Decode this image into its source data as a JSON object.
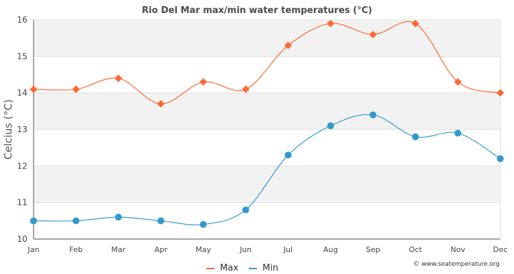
{
  "chart_data": {
    "type": "line",
    "title": "Rio Del Mar max/min water temperatures (°C)",
    "xlabel": "",
    "ylabel": "Celcius (°C)",
    "categories": [
      "Jan",
      "Feb",
      "Mar",
      "Apr",
      "May",
      "Jun",
      "Jul",
      "Aug",
      "Sep",
      "Oct",
      "Nov",
      "Dec"
    ],
    "ylim": [
      10,
      16
    ],
    "yticks": [
      10,
      11,
      12,
      13,
      14,
      15,
      16
    ],
    "grid": true,
    "legend_position": "bottom-center",
    "series": [
      {
        "name": "Max",
        "color": "#ff6633",
        "marker": "diamond",
        "values": [
          14.1,
          14.1,
          14.4,
          13.7,
          14.3,
          14.1,
          15.3,
          15.9,
          15.6,
          15.9,
          14.3,
          14.0
        ]
      },
      {
        "name": "Min",
        "color": "#3399cc",
        "marker": "circle",
        "values": [
          10.5,
          10.5,
          10.6,
          10.5,
          10.4,
          10.8,
          12.3,
          13.1,
          13.4,
          12.8,
          12.9,
          12.2
        ]
      }
    ],
    "credit": "© www.seatemperature.org"
  }
}
